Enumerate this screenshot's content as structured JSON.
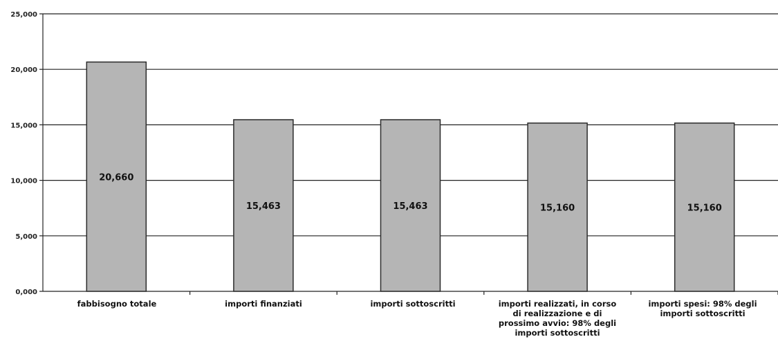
{
  "chart_data": {
    "type": "bar",
    "categories": [
      "fabbisogno totale",
      "importi finanziati",
      "importi sottoscritti",
      "importi realizzati, in corso di realizzazione e di prossimo avvio: 98% degli importi sottoscritti",
      "importi spesi: 98% degli importi sottoscritti"
    ],
    "values": [
      20660,
      15463,
      15463,
      15160,
      15160
    ],
    "data_labels": [
      "20,660",
      "15,463",
      "15,463",
      "15,160",
      "15,160"
    ],
    "ylim": [
      0,
      25000
    ],
    "yticks": [
      0,
      5000,
      10000,
      15000,
      20000,
      25000
    ],
    "ytick_labels": [
      "0,000",
      "5,000",
      "10,000",
      "15,000",
      "20,000",
      "25,000"
    ],
    "title": "",
    "xlabel": "",
    "ylabel": "",
    "grid": true,
    "legend": "none",
    "colors": {
      "bar_fill": "#b5b5b5",
      "bar_stroke": "#2b2b2b",
      "grid": "#222222",
      "axis": "#222222"
    }
  }
}
